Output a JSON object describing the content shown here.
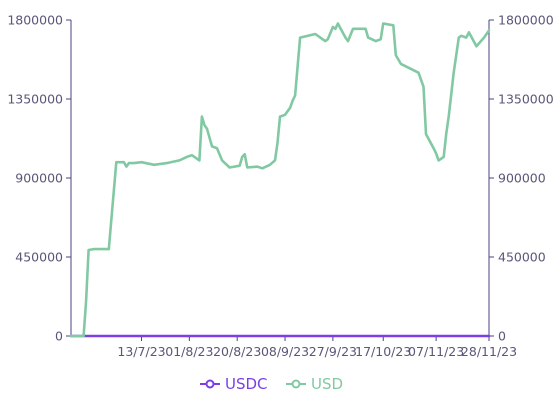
{
  "chart_data": {
    "type": "line",
    "title": "",
    "xlabel": "",
    "ylabel": "",
    "ylim": [
      0,
      1800000
    ],
    "y_ticks": [
      0,
      450000,
      900000,
      1350000,
      1800000
    ],
    "y_tick_labels": [
      "0",
      "450000",
      "900000",
      "1350000",
      "1800000"
    ],
    "y_axes": [
      "left",
      "right"
    ],
    "x_range": [
      "2023-06-15",
      "2023-11-28"
    ],
    "x_ticks": [
      "2023-07-13",
      "2023-08-01",
      "2023-08-20",
      "2023-09-08",
      "2023-09-27",
      "2023-10-17",
      "2023-11-07",
      "2023-11-28"
    ],
    "x_tick_labels": [
      "13/7/23",
      "01/8/23",
      "20/8/23",
      "08/9/23",
      "27/9/23",
      "17/10/23",
      "07/11/23",
      "28/11/23"
    ],
    "grid": false,
    "legend_position": "bottom-center",
    "series": [
      {
        "name": "USDC",
        "color": "#7b3fe4",
        "x": [
          "2023-06-15",
          "2023-11-28"
        ],
        "values": [
          0,
          0
        ]
      },
      {
        "name": "USD",
        "color": "#82c9a3",
        "x": [
          "2023-06-15",
          "2023-06-20",
          "2023-06-21",
          "2023-06-22",
          "2023-06-24",
          "2023-06-29",
          "2023-06-30",
          "2023-07-03",
          "2023-07-06",
          "2023-07-07",
          "2023-07-08",
          "2023-07-10",
          "2023-07-13",
          "2023-07-18",
          "2023-07-23",
          "2023-07-28",
          "2023-07-31",
          "2023-08-02",
          "2023-08-05",
          "2023-08-06",
          "2023-08-07",
          "2023-08-08",
          "2023-08-10",
          "2023-08-12",
          "2023-08-14",
          "2023-08-17",
          "2023-08-21",
          "2023-08-22",
          "2023-08-23",
          "2023-08-24",
          "2023-08-28",
          "2023-08-30",
          "2023-09-02",
          "2023-09-04",
          "2023-09-05",
          "2023-09-06",
          "2023-09-08",
          "2023-09-10",
          "2023-09-11",
          "2023-09-12",
          "2023-09-14",
          "2023-09-20",
          "2023-09-22",
          "2023-09-24",
          "2023-09-25",
          "2023-09-27",
          "2023-09-28",
          "2023-09-29",
          "2023-10-02",
          "2023-10-03",
          "2023-10-05",
          "2023-10-10",
          "2023-10-11",
          "2023-10-14",
          "2023-10-16",
          "2023-10-17",
          "2023-10-21",
          "2023-10-22",
          "2023-10-24",
          "2023-10-31",
          "2023-11-02",
          "2023-11-03",
          "2023-11-06",
          "2023-11-07",
          "2023-11-08",
          "2023-11-10",
          "2023-11-11",
          "2023-11-12",
          "2023-11-14",
          "2023-11-16",
          "2023-11-17",
          "2023-11-19",
          "2023-11-20",
          "2023-11-23",
          "2023-11-26",
          "2023-11-28"
        ],
        "values": [
          0,
          0,
          200000,
          490000,
          495000,
          495000,
          495000,
          990000,
          990000,
          965000,
          985000,
          985000,
          990000,
          975000,
          985000,
          1000000,
          1020000,
          1030000,
          1000000,
          1250000,
          1200000,
          1180000,
          1080000,
          1070000,
          1000000,
          960000,
          970000,
          1020000,
          1035000,
          960000,
          965000,
          955000,
          975000,
          1000000,
          1100000,
          1250000,
          1260000,
          1300000,
          1340000,
          1370000,
          1700000,
          1720000,
          1700000,
          1680000,
          1690000,
          1760000,
          1750000,
          1780000,
          1700000,
          1680000,
          1750000,
          1750000,
          1700000,
          1680000,
          1690000,
          1780000,
          1770000,
          1600000,
          1550000,
          1500000,
          1420000,
          1150000,
          1070000,
          1040000,
          1000000,
          1020000,
          1150000,
          1250000,
          1500000,
          1700000,
          1710000,
          1700000,
          1730000,
          1650000,
          1700000,
          1740000
        ]
      }
    ]
  }
}
